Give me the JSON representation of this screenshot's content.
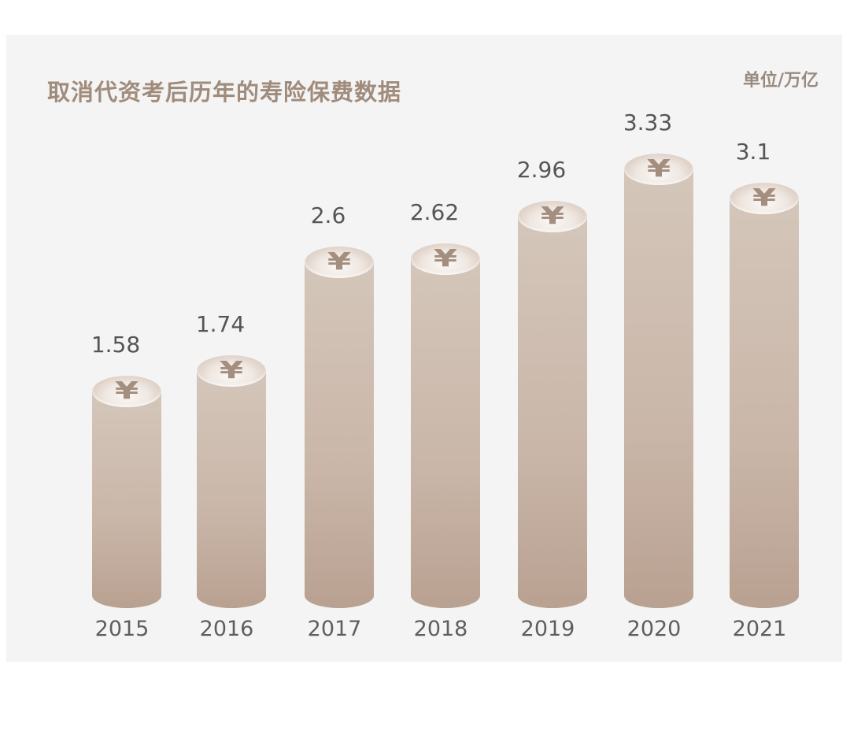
{
  "header": {
    "title": "取消代资考后历年的寿险保费数据",
    "unit": "单位/万亿"
  },
  "icons": {
    "coin": "¥"
  },
  "colors": {
    "background": "#f4f4f4",
    "title": "#a08c7c",
    "bar_top": "#d4c6ba",
    "bar_bottom": "#b9a191",
    "label": "#555555"
  },
  "chart_data": {
    "type": "bar",
    "title": "取消代资考后历年的寿险保费数据",
    "unit": "单位/万亿",
    "xlabel": "",
    "ylabel": "",
    "categories": [
      "2015",
      "2016",
      "2017",
      "2018",
      "2019",
      "2020",
      "2021"
    ],
    "values": [
      1.58,
      1.74,
      2.6,
      2.62,
      2.96,
      3.33,
      3.1
    ],
    "value_labels": [
      "1.58",
      "1.74",
      "2.6",
      "2.62",
      "2.96",
      "3.33",
      "3.1"
    ],
    "grid": false,
    "legend": false,
    "style": "3d cylinder with yen coin top"
  }
}
